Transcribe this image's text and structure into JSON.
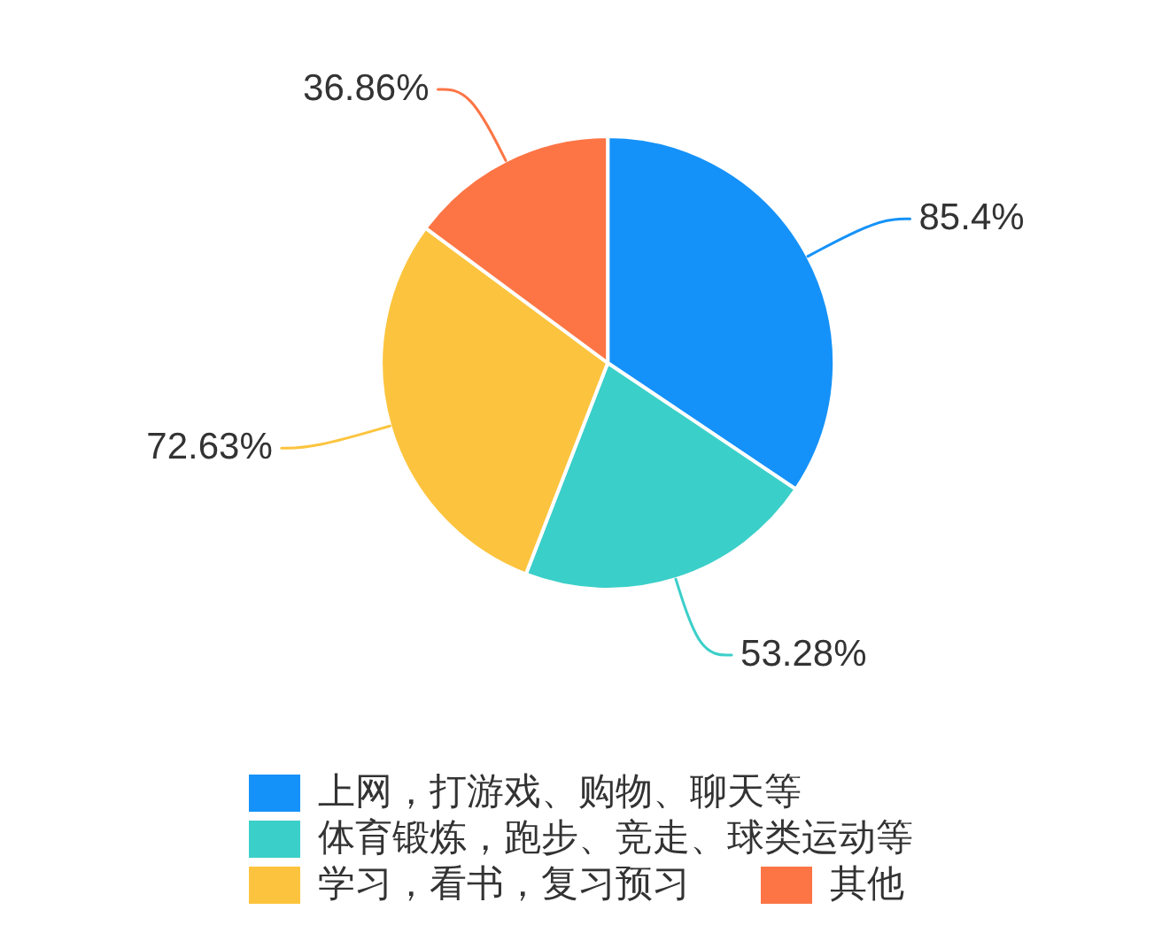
{
  "chart_data": {
    "type": "pie",
    "categories": [
      "上网，打游戏、购物、聊天等",
      "体育锻炼，跑步、竞走、球类运动等",
      "学习，看书，复习预习",
      "其他"
    ],
    "values": [
      85.4,
      53.28,
      72.63,
      36.86
    ],
    "colors": [
      "#1592f9",
      "#3bcfc9",
      "#fcc43e",
      "#fd7545"
    ],
    "value_labels": [
      "85.4%",
      "53.28%",
      "72.63%",
      "36.86%"
    ],
    "legend": "bottom"
  }
}
